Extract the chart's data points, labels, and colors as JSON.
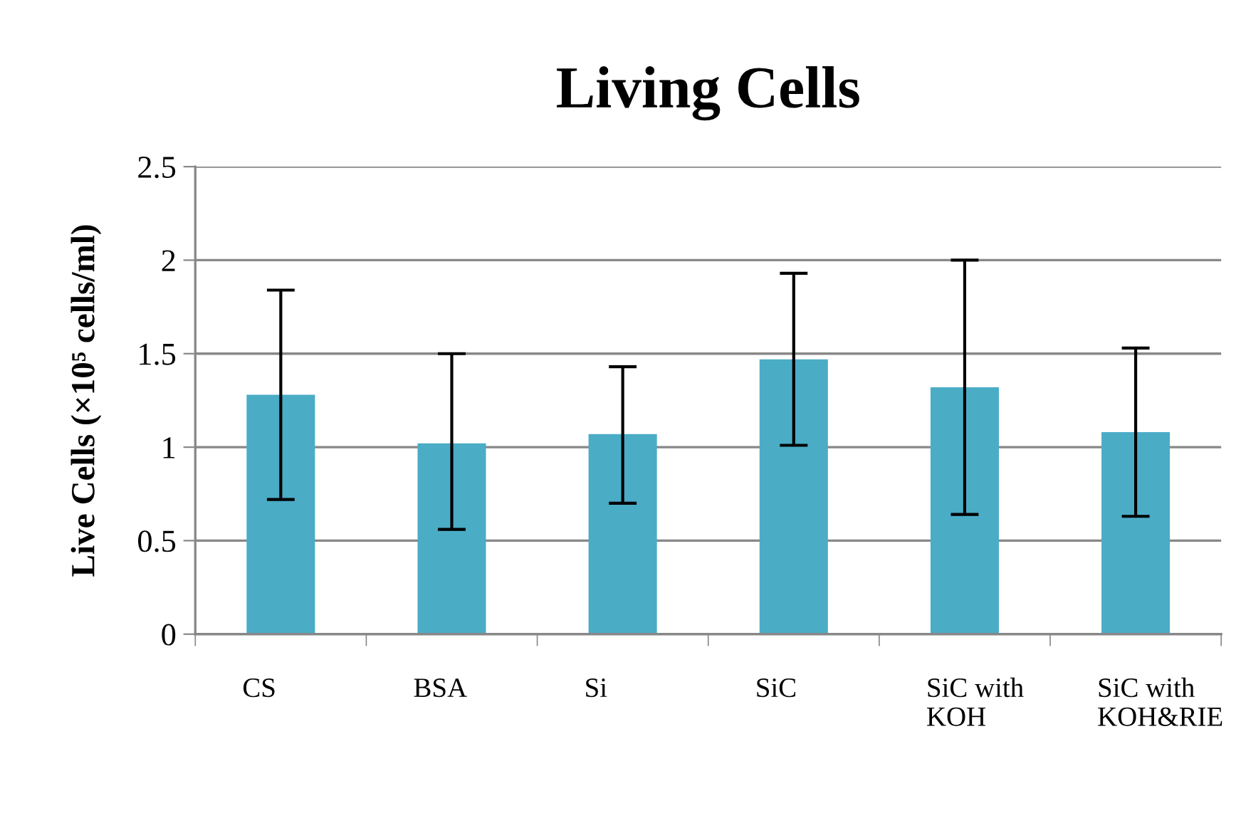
{
  "chart_data": {
    "type": "bar",
    "title": "Living Cells",
    "ylabel": "Live Cells (×10⁵ cells/ml)",
    "categories": [
      "CS",
      "BSA",
      "Si",
      "SiC",
      "SiC with\nKOH",
      "SiC with\nKOH&RIE"
    ],
    "values": [
      1.28,
      1.02,
      1.07,
      1.47,
      1.32,
      1.08
    ],
    "errors": [
      [
        0.72,
        1.84
      ],
      [
        0.56,
        1.5
      ],
      [
        0.7,
        1.43
      ],
      [
        1.01,
        1.93
      ],
      [
        0.64,
        2.0
      ],
      [
        0.63,
        1.53
      ]
    ],
    "color": "#4bacc6",
    "ylim": [
      0,
      2.5
    ],
    "yticks": [
      0,
      0.5,
      1,
      1.5,
      2,
      2.5
    ],
    "grid": "y"
  }
}
